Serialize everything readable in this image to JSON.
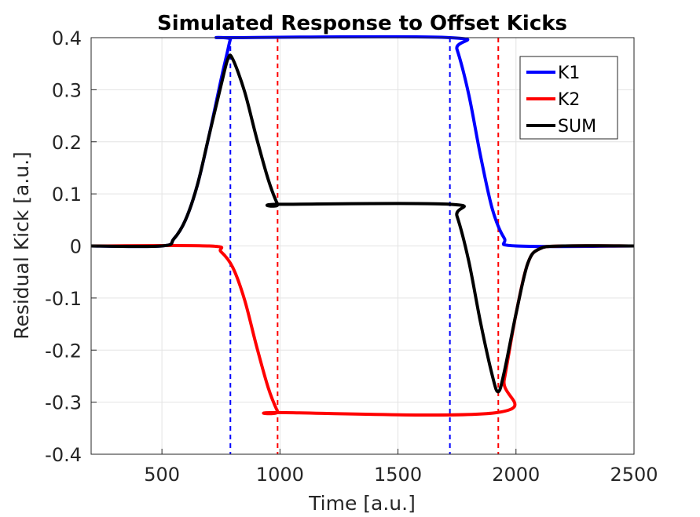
{
  "chart_data": {
    "type": "line",
    "title": "Simulated Response to Offset Kicks",
    "xlabel": "Time [a.u.]",
    "ylabel": "Residual Kick [a.u.]",
    "xlim": [
      200,
      2500
    ],
    "ylim": [
      -0.4,
      0.4
    ],
    "xticks": [
      500,
      1000,
      1500,
      2000,
      2500
    ],
    "xtick_labels": [
      "500",
      "1000",
      "1500",
      "2000",
      "2500"
    ],
    "yticks": [
      0.4,
      0.3,
      0.2,
      0.1,
      0,
      -0.1,
      -0.2,
      -0.3,
      -0.4
    ],
    "ytick_labels": [
      "0.4",
      "0.3",
      "0.2",
      "0.1",
      "0",
      "-0.1",
      "-0.2",
      "-0.3",
      "-0.4"
    ],
    "grid": true,
    "legend_position": "top-right",
    "vlines": [
      {
        "x": 790,
        "color": "#0000ff"
      },
      {
        "x": 990,
        "color": "#ff0000"
      },
      {
        "x": 1720,
        "color": "#0000ff"
      },
      {
        "x": 1925,
        "color": "#ff0000"
      }
    ],
    "series": [
      {
        "name": "K1",
        "color": "#0000ff",
        "points": [
          [
            200,
            0
          ],
          [
            500,
            0
          ],
          [
            550,
            0.0134
          ],
          [
            600,
            0.0502
          ],
          [
            650,
            0.1168
          ],
          [
            700,
            0.2128
          ],
          [
            750,
            0.3188
          ],
          [
            775,
            0.368
          ],
          [
            790,
            0.397
          ],
          [
            800,
            0.4
          ],
          [
            1720,
            0.4
          ],
          [
            1750,
            0.3775
          ],
          [
            1800,
            0.2905
          ],
          [
            1850,
            0.1725
          ],
          [
            1900,
            0.0705
          ],
          [
            1950,
            0.0152
          ],
          [
            2000,
            0.0
          ],
          [
            2500,
            0.0
          ]
        ]
      },
      {
        "name": "K2",
        "color": "#ff0000",
        "points": [
          [
            200,
            0
          ],
          [
            700,
            0
          ],
          [
            750,
            -0.011
          ],
          [
            800,
            -0.0413
          ],
          [
            850,
            -0.1033
          ],
          [
            900,
            -0.1911
          ],
          [
            950,
            -0.2719
          ],
          [
            990,
            -0.318
          ],
          [
            1000,
            -0.32
          ],
          [
            1920,
            -0.32
          ],
          [
            1950,
            -0.2575
          ],
          [
            2000,
            -0.1305
          ],
          [
            2050,
            -0.0335
          ],
          [
            2100,
            -0.0055
          ],
          [
            2200,
            0.0
          ],
          [
            2500,
            0.0
          ]
        ]
      },
      {
        "name": "SUM",
        "color": "#000000",
        "points": [
          [
            200,
            0
          ],
          [
            500,
            0
          ],
          [
            550,
            0.0134
          ],
          [
            600,
            0.0502
          ],
          [
            650,
            0.1168
          ],
          [
            700,
            0.2128
          ],
          [
            750,
            0.3078
          ],
          [
            780,
            0.36
          ],
          [
            800,
            0.3587
          ],
          [
            850,
            0.2967
          ],
          [
            900,
            0.2089
          ],
          [
            950,
            0.1281
          ],
          [
            990,
            0.08
          ],
          [
            1000,
            0.08
          ],
          [
            1720,
            0.08
          ],
          [
            1750,
            0.0575
          ],
          [
            1800,
            -0.0295
          ],
          [
            1850,
            -0.1475
          ],
          [
            1900,
            -0.2495
          ],
          [
            1925,
            -0.28
          ],
          [
            1950,
            -0.2425
          ],
          [
            2000,
            -0.1305
          ],
          [
            2050,
            -0.0335
          ],
          [
            2100,
            -0.0055
          ],
          [
            2200,
            0.0
          ],
          [
            2500,
            0.0
          ]
        ]
      }
    ]
  }
}
